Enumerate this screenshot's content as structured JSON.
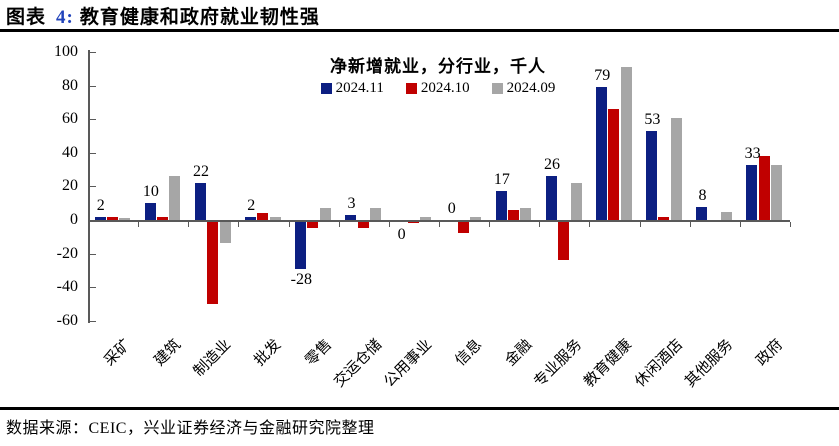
{
  "header": {
    "prefix": "图表",
    "number": "4:",
    "title": "教育健康和政府就业韧性强",
    "number_color": "#2244bb"
  },
  "chart_data": {
    "type": "bar",
    "title": "净新增就业，分行业，千人",
    "categories": [
      "采矿",
      "建筑",
      "制造业",
      "批发",
      "零售",
      "交运仓储",
      "公用事业",
      "信息",
      "金融",
      "专业服务",
      "教育健康",
      "休闲酒店",
      "其他服务",
      "政府"
    ],
    "series": [
      {
        "name": "2024.11",
        "color": "#0c1f82",
        "values": [
          2,
          10,
          22,
          2,
          -28,
          3,
          0,
          0,
          17,
          26,
          79,
          53,
          8,
          33
        ]
      },
      {
        "name": "2024.10",
        "color": "#c00000",
        "values": [
          2,
          2,
          -49,
          4,
          -4,
          -4,
          -1,
          -7,
          6,
          -23,
          66,
          2,
          0,
          38
        ]
      },
      {
        "name": "2024.09",
        "color": "#a6a6a6",
        "values": [
          1,
          26,
          -13,
          2,
          7,
          7,
          2,
          2,
          7,
          22,
          91,
          61,
          5,
          33
        ]
      }
    ],
    "data_labels": [
      "2",
      "10",
      "22",
      "2",
      "-28",
      "3",
      "0",
      "0",
      "17",
      "26",
      "79",
      "53",
      "8",
      "33"
    ],
    "data_label_side": [
      "above",
      "above",
      "above",
      "above",
      "below",
      "above",
      "below",
      "above",
      "above",
      "above",
      "above",
      "above",
      "above",
      "above"
    ],
    "ylim": [
      -60,
      100
    ],
    "ytick_step": 20,
    "legend_position": "top-center",
    "grid": false,
    "axis_color": "#595959"
  },
  "footer": {
    "source": "数据来源：CEIC，兴业证券经济与金融研究院整理"
  }
}
